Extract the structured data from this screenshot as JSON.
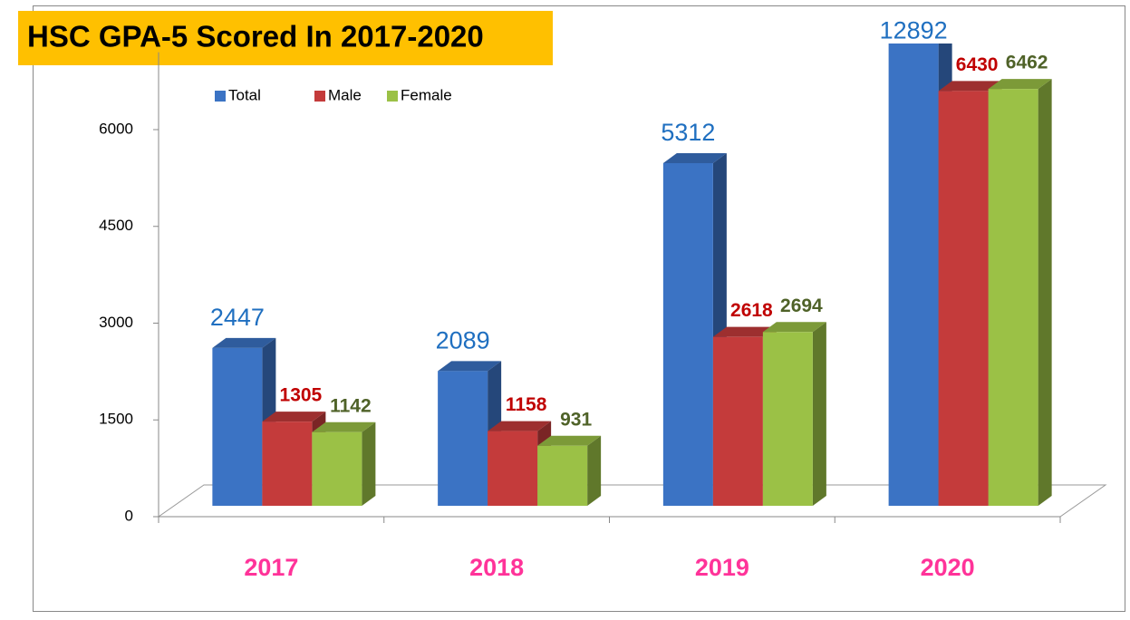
{
  "chart_data": {
    "type": "bar3d",
    "title": "HSC GPA-5 Scored In 2017-2020",
    "categories": [
      "2017",
      "2018",
      "2019",
      "2020"
    ],
    "series": [
      {
        "name": "Total",
        "color": "#3b73c4",
        "label_color": "#1f6fc0",
        "values": [
          2447,
          2089,
          5312,
          12892
        ]
      },
      {
        "name": "Male",
        "color": "#c43b3b",
        "label_color": "#c00000",
        "values": [
          1305,
          1158,
          2618,
          6430
        ]
      },
      {
        "name": "Female",
        "color": "#9bc146",
        "label_color": "#4f6228",
        "values": [
          1142,
          931,
          2694,
          6462
        ]
      }
    ],
    "ylim": [
      0,
      7200
    ],
    "yticks": [
      0,
      1500,
      3000,
      4500,
      6000
    ],
    "grid": false,
    "legend": "top"
  }
}
